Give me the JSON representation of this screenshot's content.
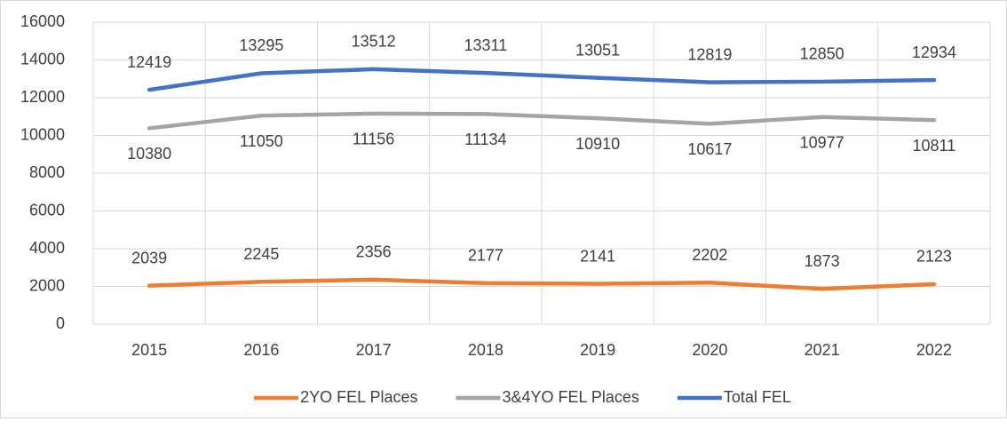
{
  "chart_data": {
    "type": "line",
    "categories": [
      "2015",
      "2016",
      "2017",
      "2018",
      "2019",
      "2020",
      "2021",
      "2022"
    ],
    "series": [
      {
        "name": "2YO FEL Places",
        "color": "#ed7d31",
        "values": [
          2039,
          2245,
          2356,
          2177,
          2141,
          2202,
          1873,
          2123
        ],
        "label_side": "above"
      },
      {
        "name": "3&4YO FEL Places",
        "color": "#a5a5a5",
        "values": [
          10380,
          11050,
          11156,
          11134,
          10910,
          10617,
          10977,
          10811
        ],
        "label_side": "below"
      },
      {
        "name": "Total FEL",
        "color": "#4472c4",
        "values": [
          12419,
          13295,
          13512,
          13311,
          13051,
          12819,
          12850,
          12934
        ],
        "label_side": "above"
      }
    ],
    "ylim": [
      0,
      16000
    ],
    "yticks": [
      0,
      2000,
      4000,
      6000,
      8000,
      10000,
      12000,
      14000,
      16000
    ],
    "grid": true,
    "legend": "bottom"
  }
}
